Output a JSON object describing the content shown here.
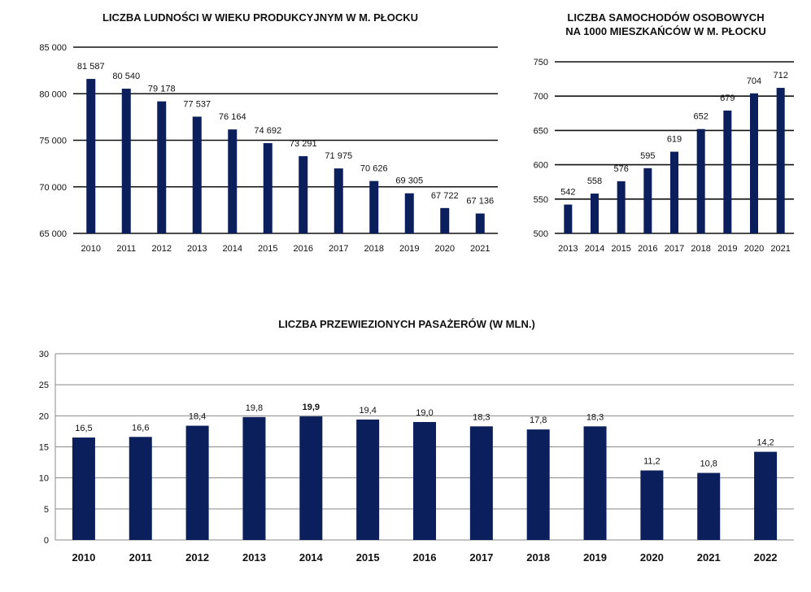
{
  "chart_data": [
    {
      "type": "bar",
      "title": "LICZBA LUDNOŚCI W WIEKU PRODUKCYJNYM W M. PŁOCKU",
      "categories": [
        "2010",
        "2011",
        "2012",
        "2013",
        "2014",
        "2015",
        "2016",
        "2017",
        "2018",
        "2019",
        "2020",
        "2021"
      ],
      "values": [
        81587,
        80540,
        79178,
        77537,
        76164,
        74692,
        73291,
        71975,
        70626,
        69305,
        67722,
        67136
      ],
      "value_labels": [
        "81 587",
        "80 540",
        "79 178",
        "77 537",
        "76 164",
        "74 692",
        "73 291",
        "71 975",
        "70 626",
        "69 305",
        "67 722",
        "67 136"
      ],
      "ylim": [
        65000,
        85000
      ],
      "yticks": [
        65000,
        70000,
        75000,
        80000,
        85000
      ],
      "ytick_labels": [
        "65 000",
        "70 000",
        "75 000",
        "80 000",
        "85 000"
      ],
      "grid": true,
      "bar_color": "#0a1f5c"
    },
    {
      "type": "bar",
      "title": "LICZBA SAMOCHODÓW OSOBOWYCH NA 1000 MIESZKAŃCÓW W M. PŁOCKU",
      "title_lines": [
        "LICZBA SAMOCHODÓW OSOBOWYCH",
        "NA 1000 MIESZKAŃCÓW W M. PŁOCKU"
      ],
      "categories": [
        "2013",
        "2014",
        "2015",
        "2016",
        "2017",
        "2018",
        "2019",
        "2020",
        "2021"
      ],
      "values": [
        542,
        558,
        576,
        595,
        619,
        652,
        679,
        704,
        712
      ],
      "value_labels": [
        "542",
        "558",
        "576",
        "595",
        "619",
        "652",
        "679",
        "704",
        "712"
      ],
      "ylim": [
        500,
        750
      ],
      "yticks": [
        500,
        550,
        600,
        650,
        700,
        750
      ],
      "ytick_labels": [
        "500",
        "550",
        "600",
        "650",
        "700",
        "750"
      ],
      "grid": true,
      "bar_color": "#0a1f5c"
    },
    {
      "type": "bar",
      "title": "LICZBA PRZEWIEZIONYCH PASAŻERÓW (W MLN.)",
      "categories": [
        "2010",
        "2011",
        "2012",
        "2013",
        "2014",
        "2015",
        "2016",
        "2017",
        "2018",
        "2019",
        "2020",
        "2021",
        "2022"
      ],
      "values": [
        16.5,
        16.6,
        18.4,
        19.8,
        19.9,
        19.4,
        19.0,
        18.3,
        17.8,
        18.3,
        11.2,
        10.8,
        14.2
      ],
      "value_labels": [
        "16,5",
        "16,6",
        "18,4",
        "19,8",
        "19,9",
        "19,4",
        "19,0",
        "18,3",
        "17,8",
        "18,3",
        "11,2",
        "10,8",
        "14,2"
      ],
      "highlight_index": 4,
      "highlight_color": "#e02020",
      "ylim": [
        0,
        30
      ],
      "yticks": [
        0,
        5,
        10,
        15,
        20,
        25,
        30
      ],
      "ytick_labels": [
        "0",
        "5",
        "10",
        "15",
        "20",
        "25",
        "30"
      ],
      "grid": true,
      "bar_color": "#0a1f5c"
    }
  ]
}
